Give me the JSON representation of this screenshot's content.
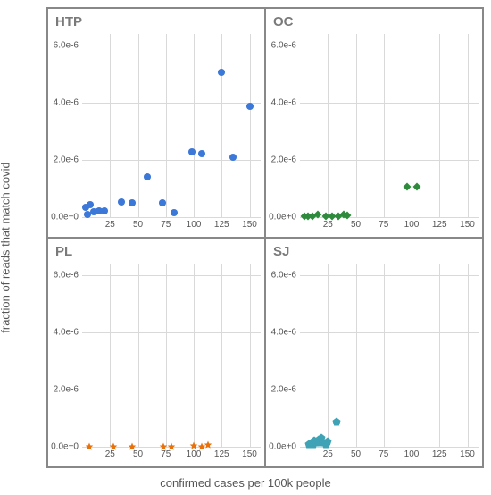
{
  "axis_labels": {
    "x": "confirmed cases per 100k people",
    "y": "fraction of reads that match covid"
  },
  "xlim": [
    0,
    160
  ],
  "ylim": [
    0,
    6.4e-06
  ],
  "y_ticks": [
    {
      "v": 0,
      "label": "0.0e+0"
    },
    {
      "v": 2e-06,
      "label": "2.0e-6"
    },
    {
      "v": 4e-06,
      "label": "4.0e-6"
    },
    {
      "v": 6e-06,
      "label": "6.0e-6"
    }
  ],
  "x_ticks": [
    {
      "v": 25,
      "label": "25"
    },
    {
      "v": 50,
      "label": "50"
    },
    {
      "v": 75,
      "label": "75"
    },
    {
      "v": 100,
      "label": "100"
    },
    {
      "v": 125,
      "label": "125"
    },
    {
      "v": 150,
      "label": "150"
    }
  ],
  "grid_color": "#d9d9d9",
  "panel_title_color": "#7a7a7a",
  "background_color": "#ffffff",
  "marker_size": 9,
  "panels": [
    {
      "key": "HTP",
      "title": "HTP",
      "marker": "circle",
      "color": "#3c78d8",
      "points": [
        {
          "x": 3,
          "y": 3.5e-07
        },
        {
          "x": 5,
          "y": 1e-07
        },
        {
          "x": 7,
          "y": 4.5e-07
        },
        {
          "x": 10,
          "y": 2e-07
        },
        {
          "x": 15,
          "y": 2.2e-07
        },
        {
          "x": 20,
          "y": 2.3e-07
        },
        {
          "x": 35,
          "y": 5.4e-07
        },
        {
          "x": 45,
          "y": 4.9e-07
        },
        {
          "x": 58,
          "y": 1.4e-06
        },
        {
          "x": 72,
          "y": 5e-07
        },
        {
          "x": 82,
          "y": 1.5e-07
        },
        {
          "x": 98,
          "y": 2.27e-06
        },
        {
          "x": 107,
          "y": 2.22e-06
        },
        {
          "x": 125,
          "y": 5.05e-06
        },
        {
          "x": 135,
          "y": 2.1e-06
        },
        {
          "x": 150,
          "y": 3.88e-06
        }
      ]
    },
    {
      "key": "OC",
      "title": "OC",
      "marker": "diamond",
      "color": "#2e8b3d",
      "points": [
        {
          "x": 4,
          "y": 2e-08
        },
        {
          "x": 7,
          "y": 3e-08
        },
        {
          "x": 11,
          "y": 2e-08
        },
        {
          "x": 16,
          "y": 8e-08
        },
        {
          "x": 23,
          "y": 2e-08
        },
        {
          "x": 29,
          "y": 2e-08
        },
        {
          "x": 34,
          "y": 4e-08
        },
        {
          "x": 39,
          "y": 9e-08
        },
        {
          "x": 42,
          "y": 5e-08
        },
        {
          "x": 96,
          "y": 1.07e-06
        },
        {
          "x": 105,
          "y": 1.05e-06
        }
      ]
    },
    {
      "key": "PL",
      "title": "PL",
      "marker": "star",
      "color": "#e8710a",
      "points": [
        {
          "x": 6,
          "y": 1e-08
        },
        {
          "x": 28,
          "y": 1e-08
        },
        {
          "x": 45,
          "y": 1.5e-08
        },
        {
          "x": 73,
          "y": 1.5e-08
        },
        {
          "x": 80,
          "y": 1e-08
        },
        {
          "x": 100,
          "y": 4e-08
        },
        {
          "x": 107,
          "y": 1.5e-08
        },
        {
          "x": 113,
          "y": 5e-08
        }
      ]
    },
    {
      "key": "SJ",
      "title": "SJ",
      "marker": "pentagon",
      "color": "#3fa3b5",
      "points": [
        {
          "x": 8,
          "y": 9e-08
        },
        {
          "x": 10,
          "y": 1.3e-07
        },
        {
          "x": 12,
          "y": 8e-08
        },
        {
          "x": 13,
          "y": 2.2e-07
        },
        {
          "x": 15,
          "y": 1.5e-07
        },
        {
          "x": 17,
          "y": 2.4e-07
        },
        {
          "x": 19,
          "y": 3e-07
        },
        {
          "x": 21,
          "y": 1.5e-07
        },
        {
          "x": 23,
          "y": 1e-07
        },
        {
          "x": 25,
          "y": 2e-07
        },
        {
          "x": 33,
          "y": 8.8e-07
        }
      ]
    }
  ]
}
